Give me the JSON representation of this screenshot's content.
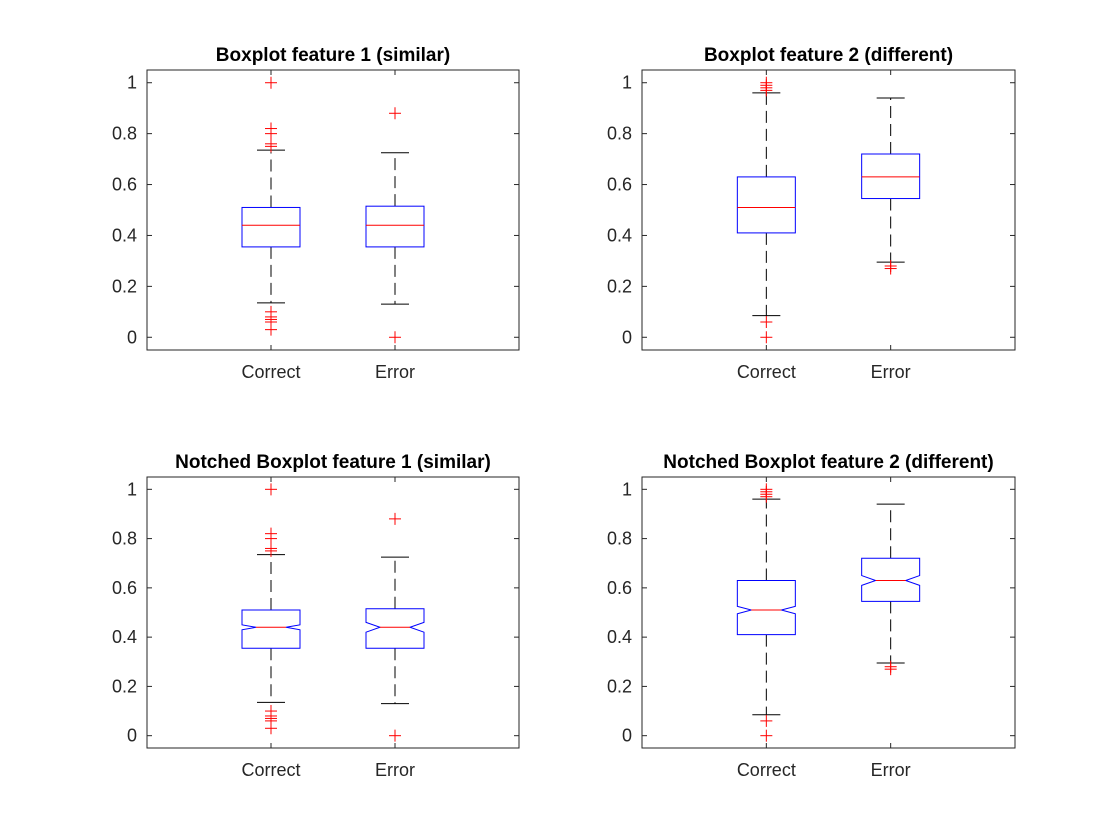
{
  "chart_data": [
    {
      "type": "boxplot",
      "title": "Boxplot feature 1 (similar)",
      "notched": false,
      "categories": [
        "Correct",
        "Error"
      ],
      "ylim": [
        -0.05,
        1.05
      ],
      "yticks": [
        "0",
        "0.2",
        "0.4",
        "0.6",
        "0.8",
        "1"
      ],
      "boxes": [
        {
          "category": "Correct",
          "whisker_low": 0.135,
          "q1": 0.355,
          "median": 0.44,
          "q3": 0.51,
          "whisker_high": 0.735,
          "outliers": [
            1.0,
            0.82,
            0.8,
            0.76,
            0.75,
            0.1,
            0.08,
            0.07,
            0.06,
            0.03
          ]
        },
        {
          "category": "Error",
          "whisker_low": 0.13,
          "q1": 0.355,
          "median": 0.44,
          "q3": 0.515,
          "whisker_high": 0.725,
          "outliers": [
            0.88,
            0.0
          ]
        }
      ]
    },
    {
      "type": "boxplot",
      "title": "Boxplot feature 2 (different)",
      "notched": false,
      "categories": [
        "Correct",
        "Error"
      ],
      "ylim": [
        -0.05,
        1.05
      ],
      "yticks": [
        "0",
        "0.2",
        "0.4",
        "0.6",
        "0.8",
        "1"
      ],
      "boxes": [
        {
          "category": "Correct",
          "whisker_low": 0.085,
          "q1": 0.41,
          "median": 0.51,
          "q3": 0.63,
          "whisker_high": 0.96,
          "outliers": [
            1.0,
            0.99,
            0.98,
            0.97,
            0.06,
            0.0
          ]
        },
        {
          "category": "Error",
          "whisker_low": 0.295,
          "q1": 0.545,
          "median": 0.63,
          "q3": 0.72,
          "whisker_high": 0.94,
          "outliers": [
            0.28,
            0.27
          ]
        }
      ]
    },
    {
      "type": "boxplot",
      "title": "Notched Boxplot feature 1 (similar)",
      "notched": true,
      "categories": [
        "Correct",
        "Error"
      ],
      "ylim": [
        -0.05,
        1.05
      ],
      "yticks": [
        "0",
        "0.2",
        "0.4",
        "0.6",
        "0.8",
        "1"
      ],
      "boxes": [
        {
          "category": "Correct",
          "whisker_low": 0.135,
          "q1": 0.355,
          "median": 0.44,
          "q3": 0.51,
          "whisker_high": 0.735,
          "notch_low": 0.43,
          "notch_high": 0.45,
          "outliers": [
            1.0,
            0.82,
            0.8,
            0.76,
            0.75,
            0.1,
            0.08,
            0.07,
            0.06,
            0.03
          ]
        },
        {
          "category": "Error",
          "whisker_low": 0.13,
          "q1": 0.355,
          "median": 0.44,
          "q3": 0.515,
          "whisker_high": 0.725,
          "notch_low": 0.42,
          "notch_high": 0.46,
          "outliers": [
            0.88,
            0.0
          ]
        }
      ]
    },
    {
      "type": "boxplot",
      "title": "Notched Boxplot feature 2 (different)",
      "notched": true,
      "categories": [
        "Correct",
        "Error"
      ],
      "ylim": [
        -0.05,
        1.05
      ],
      "yticks": [
        "0",
        "0.2",
        "0.4",
        "0.6",
        "0.8",
        "1"
      ],
      "boxes": [
        {
          "category": "Correct",
          "whisker_low": 0.085,
          "q1": 0.41,
          "median": 0.51,
          "q3": 0.63,
          "whisker_high": 0.96,
          "notch_low": 0.495,
          "notch_high": 0.525,
          "outliers": [
            1.0,
            0.99,
            0.98,
            0.97,
            0.06,
            0.0
          ]
        },
        {
          "category": "Error",
          "whisker_low": 0.295,
          "q1": 0.545,
          "median": 0.63,
          "q3": 0.72,
          "whisker_high": 0.94,
          "notch_low": 0.61,
          "notch_high": 0.65,
          "outliers": [
            0.28,
            0.27
          ]
        }
      ]
    }
  ],
  "colors": {
    "box": "#0000ff",
    "median": "#ff0000",
    "outlier": "#ff0000",
    "whisker": "#000000",
    "axes": "#262626"
  }
}
